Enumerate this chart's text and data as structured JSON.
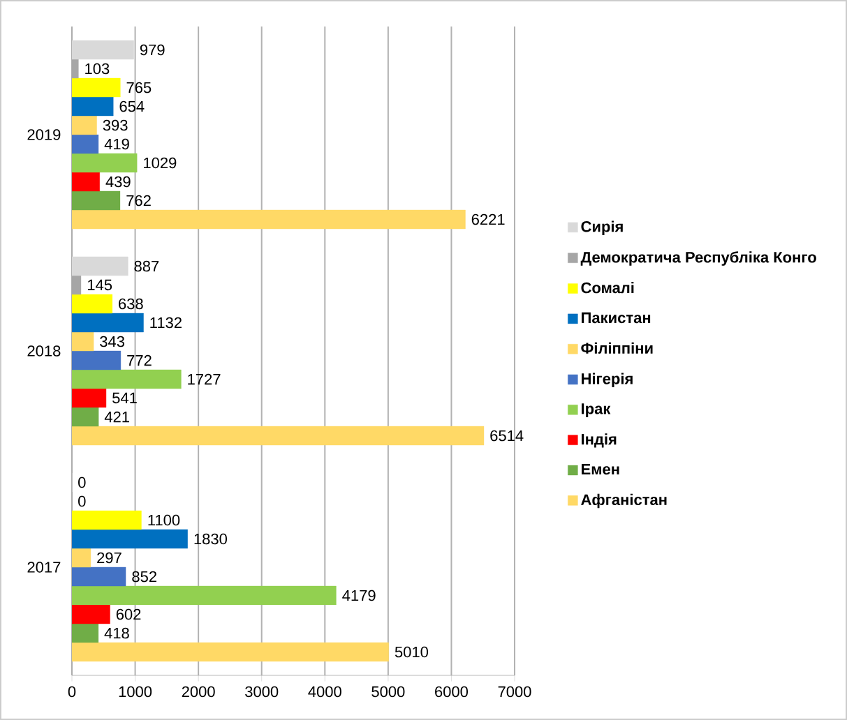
{
  "chart_data": {
    "type": "bar",
    "orientation": "horizontal",
    "categories": [
      "2019",
      "2018",
      "2017"
    ],
    "series": [
      {
        "name": "Сирія",
        "color": "#d9d9d9",
        "values": [
          979,
          887,
          0
        ]
      },
      {
        "name": "Демократича Республіка Конго",
        "color": "#a6a6a6",
        "values": [
          103,
          145,
          0
        ]
      },
      {
        "name": "Сомалі",
        "color": "#ffff00",
        "values": [
          765,
          638,
          1100
        ]
      },
      {
        "name": "Пакистан",
        "color": "#0070c0",
        "values": [
          654,
          1132,
          1830
        ]
      },
      {
        "name": "Філіппіни",
        "color": "#ffd966",
        "values": [
          393,
          343,
          297
        ]
      },
      {
        "name": "Нігерія",
        "color": "#4472c4",
        "values": [
          419,
          772,
          852
        ]
      },
      {
        "name": "Ірак",
        "color": "#92d050",
        "values": [
          1029,
          1727,
          4179
        ]
      },
      {
        "name": "Індія",
        "color": "#ff0000",
        "values": [
          439,
          541,
          602
        ]
      },
      {
        "name": "Емен",
        "color": "#70ad47",
        "values": [
          762,
          421,
          418
        ]
      },
      {
        "name": "Афганістан",
        "color": "#ffd966",
        "values": [
          6221,
          6514,
          5010
        ]
      }
    ],
    "xlim": [
      0,
      7000
    ],
    "xticks": [
      0,
      1000,
      2000,
      3000,
      4000,
      5000,
      6000,
      7000
    ],
    "grid": "x",
    "legend": "right",
    "data_labels": true
  }
}
